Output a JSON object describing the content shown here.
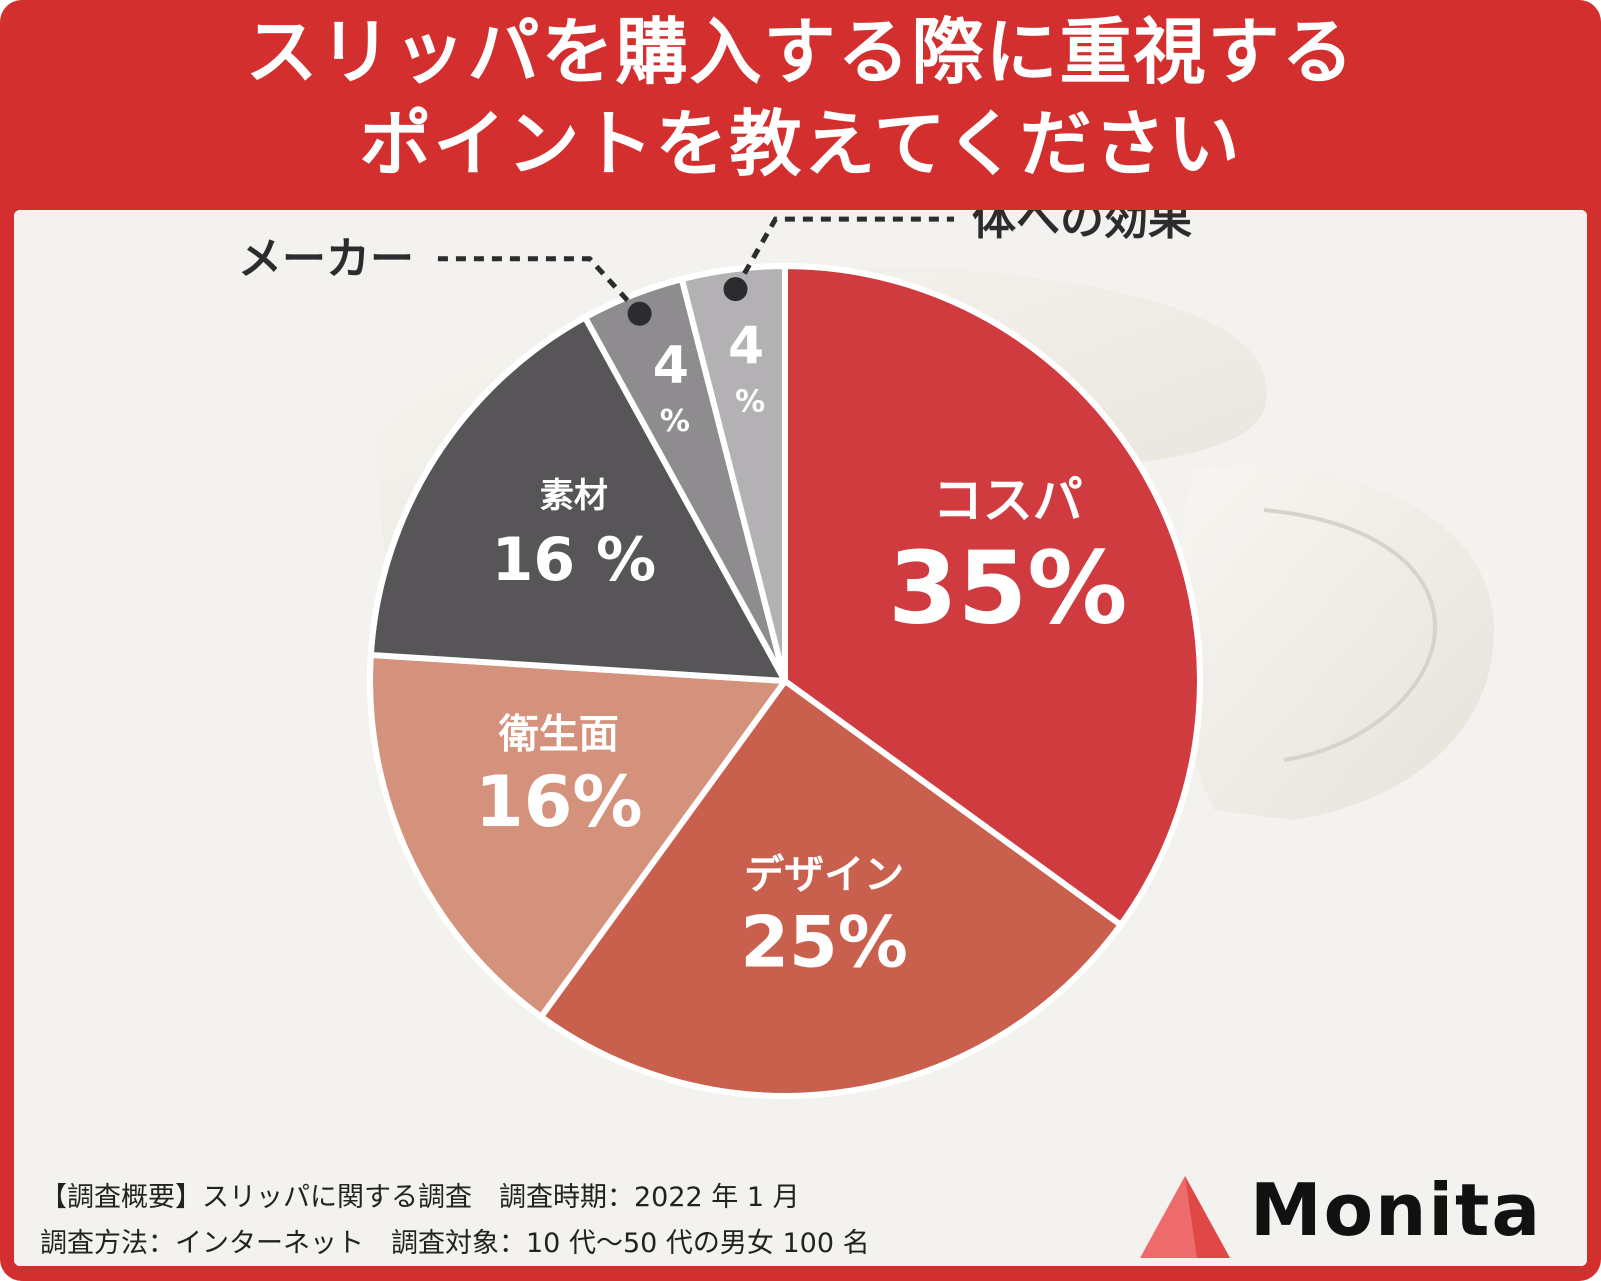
{
  "title_line1": "スリッパを購入する際に重視する",
  "title_line2": "ポイントを教えてください",
  "chart_data": {
    "type": "pie",
    "title": "スリッパを購入する際に重視するポイントを教えてください",
    "slices": [
      {
        "label": "コスパ",
        "value": 35,
        "value_label": "35%",
        "color": "#d03b3f"
      },
      {
        "label": "デザイン",
        "value": 25,
        "value_label": "25%",
        "color": "#c9604e"
      },
      {
        "label": "衛生面",
        "value": 16,
        "value_label": "16%",
        "color": "#d4917c"
      },
      {
        "label": "素材",
        "value": 16,
        "value_label": "16 %",
        "color": "#575558"
      },
      {
        "label": "メーカー",
        "value": 4,
        "value_label": "4%",
        "color": "#8e8c8f"
      },
      {
        "label": "体への効果",
        "value": 4,
        "value_label": "4%",
        "color": "#b3b1b4"
      }
    ]
  },
  "footer": {
    "line1": "【調査概要】スリッパに関する調査　調査時期：2022 年 1 月",
    "line2": "調査方法：インターネット　調査対象：10 代〜50 代の男女 100 名"
  },
  "brand": {
    "name": "Monita",
    "accent": "#ee6b6b"
  },
  "colors": {
    "frame": "#d32f2f",
    "panel": "#f3f1ed"
  }
}
